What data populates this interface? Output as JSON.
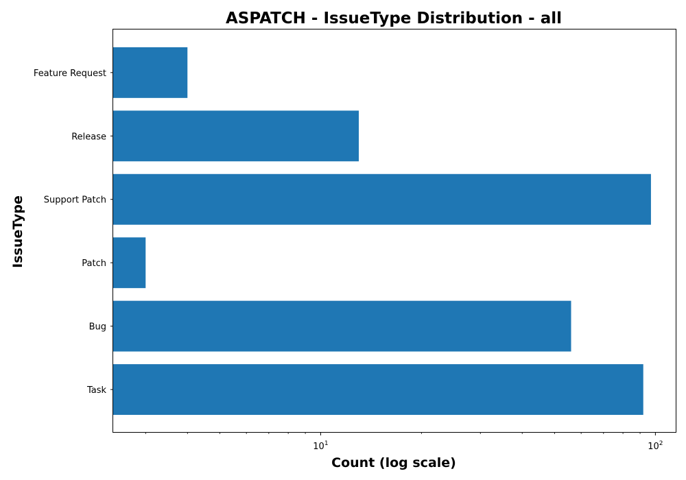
{
  "chart_data": {
    "type": "bar",
    "orientation": "horizontal",
    "title": "ASPATCH - IssueType Distribution - all",
    "xlabel": "Count (log scale)",
    "ylabel": "IssueType",
    "xscale": "log",
    "xlim": [
      2.4,
      115
    ],
    "categories": [
      "Feature Request",
      "Release",
      "Support Patch",
      "Patch",
      "Bug",
      "Task"
    ],
    "values": [
      4,
      13,
      97,
      3,
      56,
      92
    ],
    "x_major_ticks": [
      {
        "value": 10,
        "base": "10",
        "exp": "1"
      },
      {
        "value": 100,
        "base": "10",
        "exp": "2"
      }
    ],
    "x_minor_ticks": [
      3,
      4,
      5,
      6,
      7,
      8,
      9,
      20,
      30,
      40,
      50,
      60,
      70,
      80,
      90
    ],
    "grid": false,
    "bar_color": "#1f77b4"
  }
}
